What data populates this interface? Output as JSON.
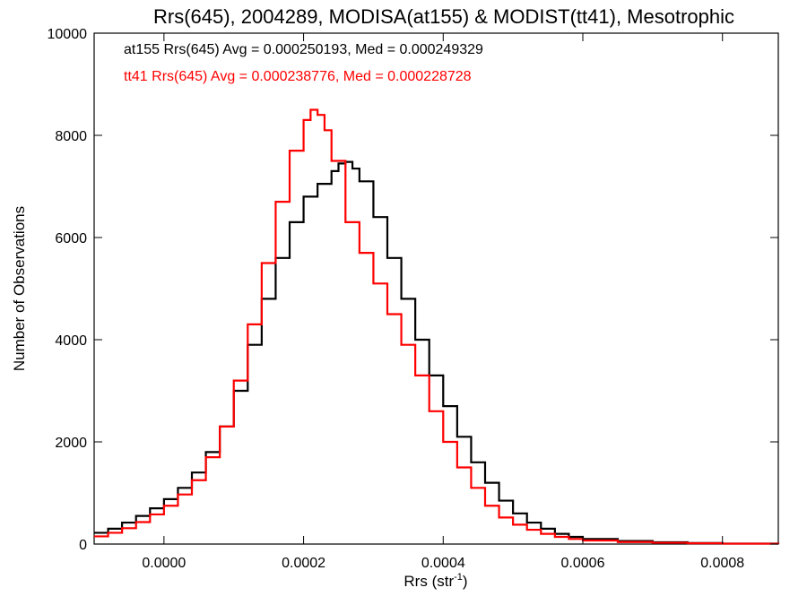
{
  "chart_data": {
    "type": "line",
    "title": "Rrs(645), 2004289, MODISA(at155) & MODIST(tt41), Mesotrophic",
    "xlabel": "Rrs (str",
    "xlabel_superscript": "-1",
    "xlabel_suffix": ")",
    "ylabel": "Number of Observations",
    "xlim": [
      -0.0001,
      0.00088
    ],
    "ylim": [
      0,
      10000
    ],
    "x_ticks": [
      0.0,
      0.0002,
      0.0004,
      0.0006,
      0.0008
    ],
    "x_tick_labels": [
      "0.0000",
      "0.0002",
      "0.0004",
      "0.0006",
      "0.0008"
    ],
    "y_ticks": [
      0,
      2000,
      4000,
      6000,
      8000,
      10000
    ],
    "y_tick_labels": [
      "0",
      "2000",
      "4000",
      "6000",
      "8000",
      "10000"
    ],
    "grid": false,
    "legend_placement": "top-left",
    "series": [
      {
        "name": "at155 Rrs(645) Avg = 0.000250193, Med = 0.000249329",
        "color": "#000000",
        "x": [
          -0.0001,
          -8e-05,
          -6e-05,
          -4e-05,
          -2e-05,
          0.0,
          2e-05,
          4e-05,
          6e-05,
          8e-05,
          0.0001,
          0.00012,
          0.00014,
          0.00016,
          0.00018,
          0.0002,
          0.00022,
          0.00024,
          0.00025,
          0.00026,
          0.00027,
          0.00028,
          0.0003,
          0.00032,
          0.00034,
          0.00036,
          0.00038,
          0.0004,
          0.00042,
          0.00044,
          0.00046,
          0.00048,
          0.0005,
          0.00052,
          0.00054,
          0.00056,
          0.00058,
          0.0006,
          0.00065,
          0.0007,
          0.00075,
          0.0008,
          0.00088
        ],
        "values": [
          220,
          300,
          420,
          550,
          700,
          880,
          1100,
          1400,
          1800,
          2300,
          3000,
          3900,
          4800,
          5600,
          6300,
          6800,
          7050,
          7300,
          7450,
          7480,
          7350,
          7100,
          6400,
          5600,
          4800,
          4000,
          3300,
          2700,
          2100,
          1600,
          1200,
          850,
          600,
          420,
          300,
          200,
          140,
          100,
          60,
          35,
          20,
          10,
          5
        ]
      },
      {
        "name": "tt41 Rrs(645) Avg = 0.000238776, Med = 0.000228728",
        "color": "#ff0000",
        "x": [
          -0.0001,
          -8e-05,
          -6e-05,
          -4e-05,
          -2e-05,
          0.0,
          2e-05,
          4e-05,
          6e-05,
          8e-05,
          0.0001,
          0.00012,
          0.00014,
          0.00016,
          0.00018,
          0.0002,
          0.00021,
          0.00022,
          0.00023,
          0.00024,
          0.00026,
          0.00028,
          0.0003,
          0.00032,
          0.00034,
          0.00036,
          0.00038,
          0.0004,
          0.00042,
          0.00044,
          0.00046,
          0.00048,
          0.0005,
          0.00052,
          0.00054,
          0.00056,
          0.00058,
          0.0006,
          0.00065,
          0.0007,
          0.00075,
          0.0008,
          0.00088
        ],
        "values": [
          150,
          220,
          310,
          430,
          580,
          750,
          970,
          1250,
          1700,
          2300,
          3200,
          4300,
          5500,
          6700,
          7700,
          8300,
          8500,
          8400,
          8100,
          7500,
          6300,
          5700,
          5100,
          4500,
          3900,
          3300,
          2600,
          2000,
          1500,
          1100,
          750,
          520,
          380,
          280,
          200,
          140,
          100,
          70,
          40,
          25,
          15,
          8,
          4
        ]
      }
    ]
  }
}
